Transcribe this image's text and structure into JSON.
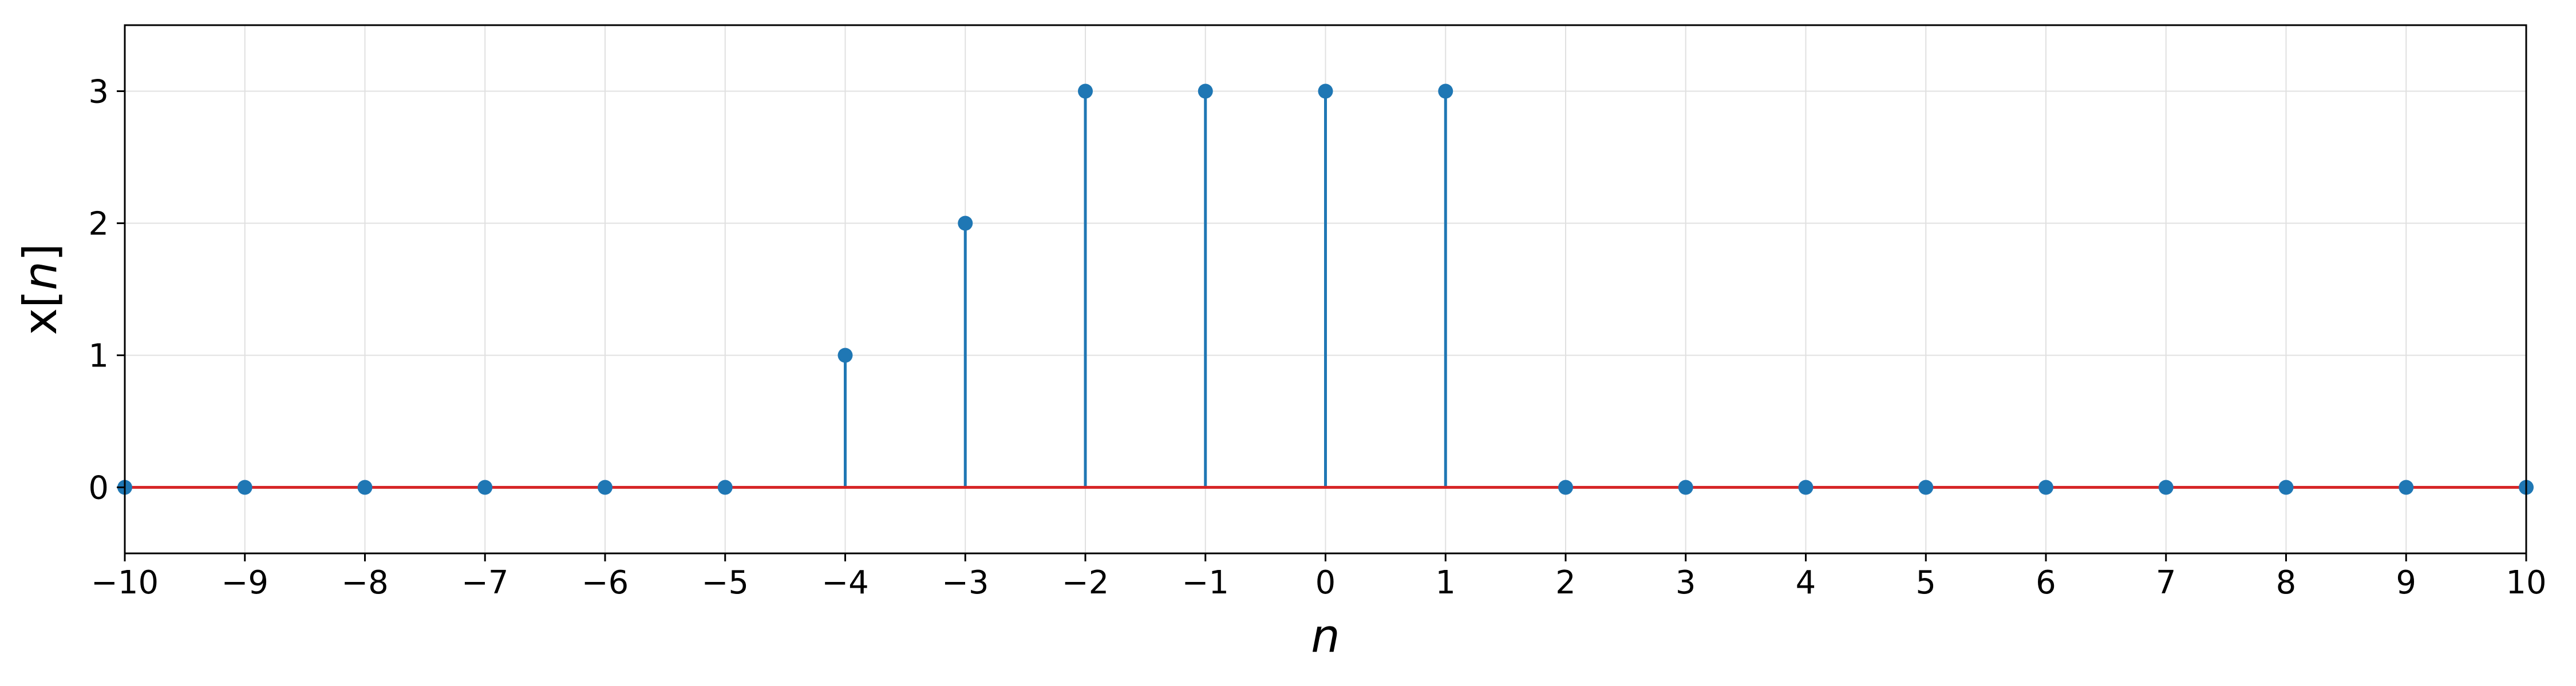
{
  "chart_data": {
    "type": "stem",
    "x": [
      -10,
      -9,
      -8,
      -7,
      -6,
      -5,
      -4,
      -3,
      -2,
      -1,
      0,
      1,
      2,
      3,
      4,
      5,
      6,
      7,
      8,
      9,
      10
    ],
    "y": [
      0,
      0,
      0,
      0,
      0,
      0,
      1,
      2,
      3,
      3,
      3,
      3,
      0,
      0,
      0,
      0,
      0,
      0,
      0,
      0,
      0
    ],
    "xlabel": "n",
    "ylabel_prefix": "x[",
    "ylabel_var": "n",
    "ylabel_suffix": "]",
    "xlim": [
      -10,
      10
    ],
    "ylim": [
      -0.5,
      3.5
    ],
    "xticks": [
      -10,
      -9,
      -8,
      -7,
      -6,
      -5,
      -4,
      -3,
      -2,
      -1,
      0,
      1,
      2,
      3,
      4,
      5,
      6,
      7,
      8,
      9,
      10
    ],
    "yticks": [
      0,
      1,
      2,
      3
    ],
    "grid": true,
    "colors": {
      "stem": "#1f77b4",
      "baseline": "#d62728",
      "grid": "#e0e0e0",
      "axes": "#000000"
    }
  }
}
